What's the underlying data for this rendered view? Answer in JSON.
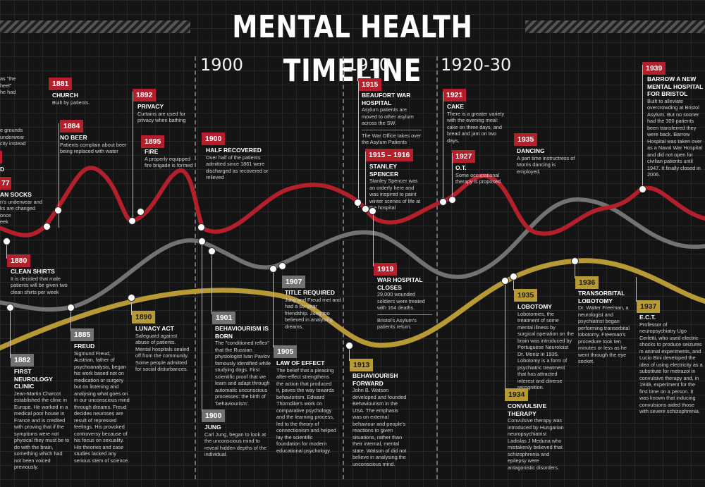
{
  "title": "MENTAL HEALTH TIMELINE",
  "colors": {
    "red": "#b3202b",
    "gray": "#727272",
    "gold": "#b79a36",
    "background": "#141414"
  },
  "era_headers": [
    "1900",
    "1910",
    "1920-30"
  ],
  "partial_left": {
    "l1": "as \"the",
    "l2": "heel\"",
    "l3": "he had",
    "l4": "e grounds",
    "l5": "underwear",
    "l6": "city instead",
    "l7": "D",
    "l8": "77",
    "l9": "AN SOCKS",
    "l10": "n's underwear and",
    "l11": "ks are changed once",
    "l12": "eek"
  },
  "events": {
    "e1881": {
      "year": "1881",
      "heading": "CHURCH",
      "text": "Built by patients."
    },
    "e1884": {
      "year": "1884",
      "heading": "NO BEER",
      "text": "Patients complain about beer being replaced with water"
    },
    "e1892": {
      "year": "1892",
      "heading": "PRIVACY",
      "text": "Curtains are used for privacy when bathing"
    },
    "e1895": {
      "year": "1895",
      "heading": "FIRE",
      "text": "A properly equipped fire brigade is formed"
    },
    "e1900r": {
      "year": "1900",
      "heading": "HALF RECOVERED",
      "text": "Over half of the patients admitted since 1861 were discharged as recovered or relieved"
    },
    "e1915": {
      "year": "1915",
      "heading": "BEAUFORT WAR HOSPITAL",
      "text": "Asylum patients are moved to other asylum across the SW.",
      "text2": "The War Office takes over the Asylum Patients"
    },
    "e1915b": {
      "year": "1915 – 1916",
      "heading": "STANLEY SPENCER",
      "text": "Stanley Spencer was an orderly here and was inspired to paint winter scenes of life at the hospital"
    },
    "e1921": {
      "year": "1921",
      "heading": "CAKE",
      "text": "There is a greater variety with the evening meal: cake on three days, and bread and jam on two days."
    },
    "e1927": {
      "year": "1927",
      "heading": "O.T.",
      "text": "Some occupational therapy is proposed."
    },
    "e1935r": {
      "year": "1935",
      "heading": "DANCING",
      "text": "A part time instructress of Morris dancing is employed."
    },
    "e1939": {
      "year": "1939",
      "heading": "BARROW A NEW MENTAL HOSPITAL FOR BRISTOL",
      "text": "Built to alleviate overcrowding at Bristol Asylum. But no sooner had the 300 patients been transferred they were back. Barrow Hospital was taken over as a Naval War Hospital and did not open for civilian patients until 1947. It finally closed in 2006."
    },
    "e1880": {
      "year": "1880",
      "heading": "CLEAN SHIRTS",
      "text": "It is decided that male patients will be given two clean shirts per week"
    },
    "e1919": {
      "year": "1919",
      "heading": "WAR HOSPITAL CLOSES",
      "text": "29,000 wounded soldiers were treated with 164 deaths.",
      "text2": "Bristol's Asylum's patients return."
    },
    "e1882": {
      "year": "1882",
      "heading": "FIRST NEUROLOGY CLINIC",
      "text": "Jean-Martin Charcot established the clinic in Europe. He worked in a medical poor house in France and is credited with proving that if the symptoms were not physical they must be to do with the brain, something which had not been voiced previously."
    },
    "e1885": {
      "year": "1885",
      "heading": "FREUD",
      "text": "Sigmund Freud, Austrian, father of psychoanalysis, began his work based not on medication or surgery but on listening and analysing what goes on in our unconscious mind through dreams. Freud decides neuroses are result of repressed feelings. His provoked controversy because of his focus on sexuality. His theories and case studies lacked any serious stem of science."
    },
    "e1890": {
      "year": "1890",
      "heading": "LUNACY ACT",
      "text": "Safeguard against abuse of patients. Mental hospitals sealed off from the community. Some people admitted for social disturbances."
    },
    "e1901": {
      "year": "1901",
      "heading": "BEHAVIOURISM IS BORN",
      "text": "The \"conditioned reflex\" that the Russian physiologist Ivan Pavlov famously identified while studying dogs. First scientific proof that we learn and adapt through automatic unconscious processes: the birth of 'behaviourism'."
    },
    "e1900j": {
      "year": "1900",
      "heading": "JUNG",
      "text": "Carl Jung, began to look at the unconscious mind to reveal hidden depths of the individual."
    },
    "e1905": {
      "year": "1905",
      "heading": "LAW OF EFFECT",
      "text": "The belief that a pleasing after-effect strengthens the action that produced it, paves the way towards behaviorism. Edward Thorndike's work on comparative psychology and the learning process, led to the theory of connectionism and helped lay the scientific foundation for modern educational psychology."
    },
    "e1907": {
      "year": "1907",
      "heading": "TITLE REQUIRED",
      "text": "Jung and Freud met and had a six-year friendship. Jung too believed in analysing dreams."
    },
    "e1913": {
      "year": "1913",
      "heading": "BEHAVIOURISH FORWARD",
      "text": "John B. Watson developed and founded Behaviourism in the USA. The emphasis was on external behaviour and people's reactions to given situations, rather than their internal, mental state. Watson of did not believe in analysing the unconscious mind."
    },
    "e1935l": {
      "year": "1935",
      "heading": "LOBOTOMY",
      "text": "Lobotomies, the treatment of some mental illness by surgical operation on the brain was introduced by Portuguese Neuroloist Dr. Moniz in 1935. Lobotomy is a form of psychiatric treatment that has attracted interest and diverse recognition."
    },
    "e1934": {
      "year": "1934",
      "heading": "CONVULSIVE THERAPY",
      "text": "Convulsive therapy was introduced by Hungarian neuropsychiatrist Ladislas J Meduna who mistakenly believed that schizophrenia and epilepsy were antagonistic disorders."
    },
    "e1936": {
      "year": "1936",
      "heading": "TRANSORBITAL LOBOTOMY",
      "text": "Dr. Walter Freeman, a neurologist and psychiatrist began performing transorbital lobotomy. Freeman's procedure took ten minutes or less as he went through the eye socket."
    },
    "e1937": {
      "year": "1937",
      "heading": "E.C.T.",
      "text": "Professor of neuropsychiatry Ugo Cerletti, who used electric shocks to produce seizures in animal experiments, and Lucio Bini developed the idea of using electricity as a substitute for metrazol in convulsive therapy and, in 1938, experiment for the first time on a person. It was known that inducing convulsions aided those with severe schizophrenia."
    }
  }
}
